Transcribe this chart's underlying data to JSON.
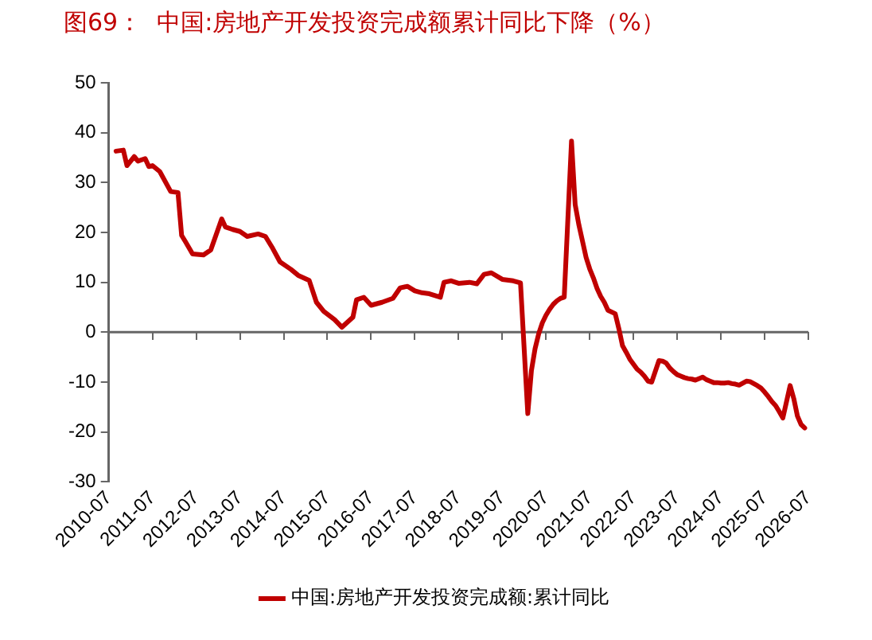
{
  "chart_data": {
    "type": "line",
    "title": "图69：  中国:房地产开发投资完成额累计同比下降（%）",
    "x": [
      "2010-09",
      "2010-11",
      "2010-12",
      "2011-02",
      "2011-03",
      "2011-05",
      "2011-06",
      "2011-07",
      "2011-09",
      "2011-12",
      "2012-02",
      "2012-03",
      "2012-04",
      "2012-06",
      "2012-09",
      "2012-11",
      "2013-02",
      "2013-03",
      "2013-05",
      "2013-07",
      "2013-09",
      "2013-12",
      "2014-02",
      "2014-04",
      "2014-06",
      "2014-09",
      "2014-11",
      "2015-02",
      "2015-04",
      "2015-06",
      "2015-09",
      "2015-11",
      "2016-02",
      "2016-03",
      "2016-05",
      "2016-07",
      "2016-10",
      "2017-01",
      "2017-03",
      "2017-05",
      "2017-07",
      "2017-09",
      "2017-11",
      "2018-02",
      "2018-03",
      "2018-05",
      "2018-07",
      "2018-10",
      "2018-12",
      "2019-02",
      "2019-04",
      "2019-07",
      "2019-10",
      "2019-12",
      "2020-02",
      "2020-03",
      "2020-04",
      "2020-05",
      "2020-06",
      "2020-07",
      "2020-08",
      "2020-09",
      "2020-10",
      "2020-11",
      "2020-12",
      "2021-02",
      "2021-03",
      "2021-04",
      "2021-05",
      "2021-06",
      "2021-07",
      "2021-08",
      "2021-09",
      "2021-10",
      "2021-11",
      "2021-12",
      "2022-02",
      "2022-03",
      "2022-04",
      "2022-05",
      "2022-06",
      "2022-07",
      "2022-08",
      "2022-09",
      "2022-10",
      "2022-11",
      "2022-12",
      "2023-02",
      "2023-03",
      "2023-04",
      "2023-05",
      "2023-06",
      "2023-07",
      "2023-08",
      "2023-09",
      "2023-10",
      "2023-11",
      "2023-12",
      "2024-02",
      "2024-03",
      "2024-04",
      "2024-05",
      "2024-06",
      "2024-07",
      "2024-08",
      "2024-09",
      "2024-10",
      "2024-11",
      "2024-12",
      "2025-02",
      "2025-03",
      "2025-04",
      "2025-05",
      "2025-06",
      "2025-07",
      "2025-08",
      "2025-09",
      "2025-10",
      "2025-11",
      "2025-12",
      "2026-02",
      "2026-03",
      "2026-04",
      "2026-05",
      "2026-06"
    ],
    "series": [
      {
        "name": "中国:房地产开发投资完成额:累计同比",
        "color": "#c00000",
        "values": [
          36.3,
          36.5,
          33.4,
          35.2,
          34.3,
          34.8,
          33.2,
          33.4,
          32.2,
          28.2,
          28,
          19.4,
          18.2,
          15.7,
          15.5,
          16.5,
          22.7,
          21.1,
          20.6,
          20.2,
          19.2,
          19.7,
          19.2,
          16.8,
          14.1,
          12.6,
          11.4,
          10.4,
          6,
          4.2,
          2.5,
          1.0,
          3,
          6.5,
          7,
          5.4,
          6,
          6.8,
          8.9,
          9.2,
          8.3,
          7.9,
          7.7,
          7,
          10,
          10.3,
          9.8,
          10.0,
          9.7,
          11.6,
          11.9,
          10.6,
          10.3,
          9.9,
          -16.3,
          -7.7,
          -3.3,
          -0.3,
          1.9,
          3.4,
          4.6,
          5.6,
          6.3,
          6.8,
          7.0,
          38.3,
          25.6,
          21.6,
          18.3,
          15.0,
          12.7,
          10.9,
          8.8,
          7.2,
          6.0,
          4.4,
          3.7,
          0.7,
          -2.7,
          -4.0,
          -5.4,
          -6.4,
          -7.4,
          -8.0,
          -8.8,
          -9.8,
          -10.0,
          -5.7,
          -5.8,
          -6.2,
          -7.2,
          -7.9,
          -8.5,
          -8.8,
          -9.1,
          -9.3,
          -9.4,
          -9.6,
          -9.0,
          -9.5,
          -9.8,
          -10.1,
          -10.1,
          -10.2,
          -10.2,
          -10.1,
          -10.3,
          -10.4,
          -10.6,
          -9.8,
          -9.9,
          -10.3,
          -10.7,
          -11.2,
          -12.0,
          -12.9,
          -13.9,
          -14.7,
          -15.9,
          -17.2,
          -10.7,
          -13.3,
          -16.8,
          -18.5,
          -19.2
        ]
      }
    ],
    "xlim": [
      "2010-07",
      "2026-07"
    ],
    "xticks": [
      "2010-07",
      "2011-07",
      "2012-07",
      "2013-07",
      "2014-07",
      "2015-07",
      "2016-07",
      "2017-07",
      "2018-07",
      "2019-07",
      "2020-07",
      "2021-07",
      "2022-07",
      "2023-07",
      "2024-07",
      "2025-07",
      "2026-07"
    ],
    "ylim": [
      -30,
      50
    ],
    "yticks": [
      -30,
      -20,
      -10,
      0,
      10,
      20,
      30,
      40,
      50
    ],
    "ref_lines": [
      {
        "axis": "y",
        "value": 0,
        "color": "#666666"
      }
    ],
    "grid": false,
    "legend": "bottom",
    "marker": "none",
    "line_style": "solid"
  }
}
